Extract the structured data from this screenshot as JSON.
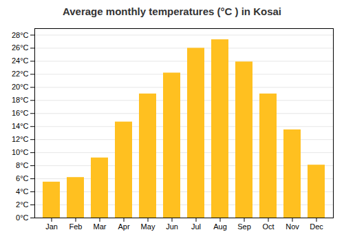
{
  "chart_data": {
    "type": "bar",
    "title": "Average monthly temperatures (°C ) in Kosai",
    "categories": [
      "Jan",
      "Feb",
      "Mar",
      "Apr",
      "May",
      "Jun",
      "Jul",
      "Aug",
      "Sep",
      "Oct",
      "Nov",
      "Dec"
    ],
    "values": [
      5.5,
      6.2,
      9.2,
      14.7,
      19.0,
      22.2,
      26.0,
      27.3,
      23.9,
      19.0,
      13.5,
      8.1
    ],
    "color": "#FFC020",
    "ylim": [
      0,
      29
    ],
    "yticks": [
      {
        "value": 0,
        "label": "0°C"
      },
      {
        "value": 2,
        "label": "2°C"
      },
      {
        "value": 4,
        "label": "4°C"
      },
      {
        "value": 6,
        "label": "6°C"
      },
      {
        "value": 8,
        "label": "8°C"
      },
      {
        "value": 10,
        "label": "10°C"
      },
      {
        "value": 12,
        "label": "12°C"
      },
      {
        "value": 14,
        "label": "14°C"
      },
      {
        "value": 16,
        "label": "16°C"
      },
      {
        "value": 18,
        "label": "18°C"
      },
      {
        "value": 20,
        "label": "20°C"
      },
      {
        "value": 22,
        "label": "22°C"
      },
      {
        "value": 24,
        "label": "24°C"
      },
      {
        "value": 26,
        "label": "26°C"
      },
      {
        "value": 28,
        "label": "28°C"
      }
    ],
    "grid": true
  }
}
